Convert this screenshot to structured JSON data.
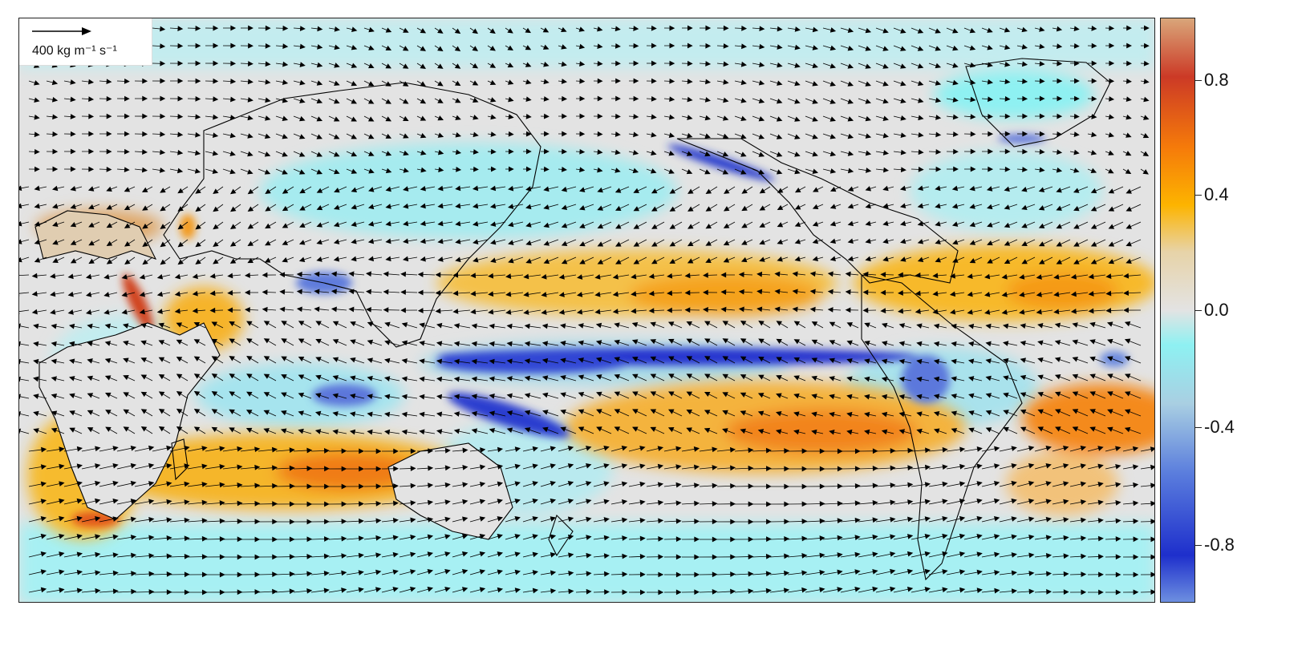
{
  "map": {
    "projection": "Pacific-centred global equirectangular",
    "background_color": "#e3e3e3",
    "vector_field": "arrows",
    "coastline_color": "#000000"
  },
  "scale_key": {
    "label": "400 kg m⁻¹ s⁻¹",
    "icon": "arrow-right-icon"
  },
  "colorbar": {
    "range": [
      -1.0,
      1.0
    ],
    "ticks": [
      {
        "value": 0.8,
        "label": "0.8"
      },
      {
        "value": 0.4,
        "label": "0.4"
      },
      {
        "value": 0.0,
        "label": "0.0"
      },
      {
        "value": -0.4,
        "label": "-0.4"
      },
      {
        "value": -0.8,
        "label": "-0.8"
      }
    ],
    "colors": [
      {
        "at": 0.0,
        "color": "#d9a67a"
      },
      {
        "at": 0.1,
        "color": "#cc3a26"
      },
      {
        "at": 0.22,
        "color": "#f57a0a"
      },
      {
        "at": 0.32,
        "color": "#fdb400"
      },
      {
        "at": 0.4,
        "color": "#e7d3a8"
      },
      {
        "at": 0.5,
        "color": "#e3e3e3"
      },
      {
        "at": 0.56,
        "color": "#8ef1f2"
      },
      {
        "at": 0.66,
        "color": "#a9cfe2"
      },
      {
        "at": 0.78,
        "color": "#5a7ddd"
      },
      {
        "at": 0.92,
        "color": "#1e2fcc"
      },
      {
        "at": 1.0,
        "color": "#6d8fe0"
      }
    ]
  }
}
